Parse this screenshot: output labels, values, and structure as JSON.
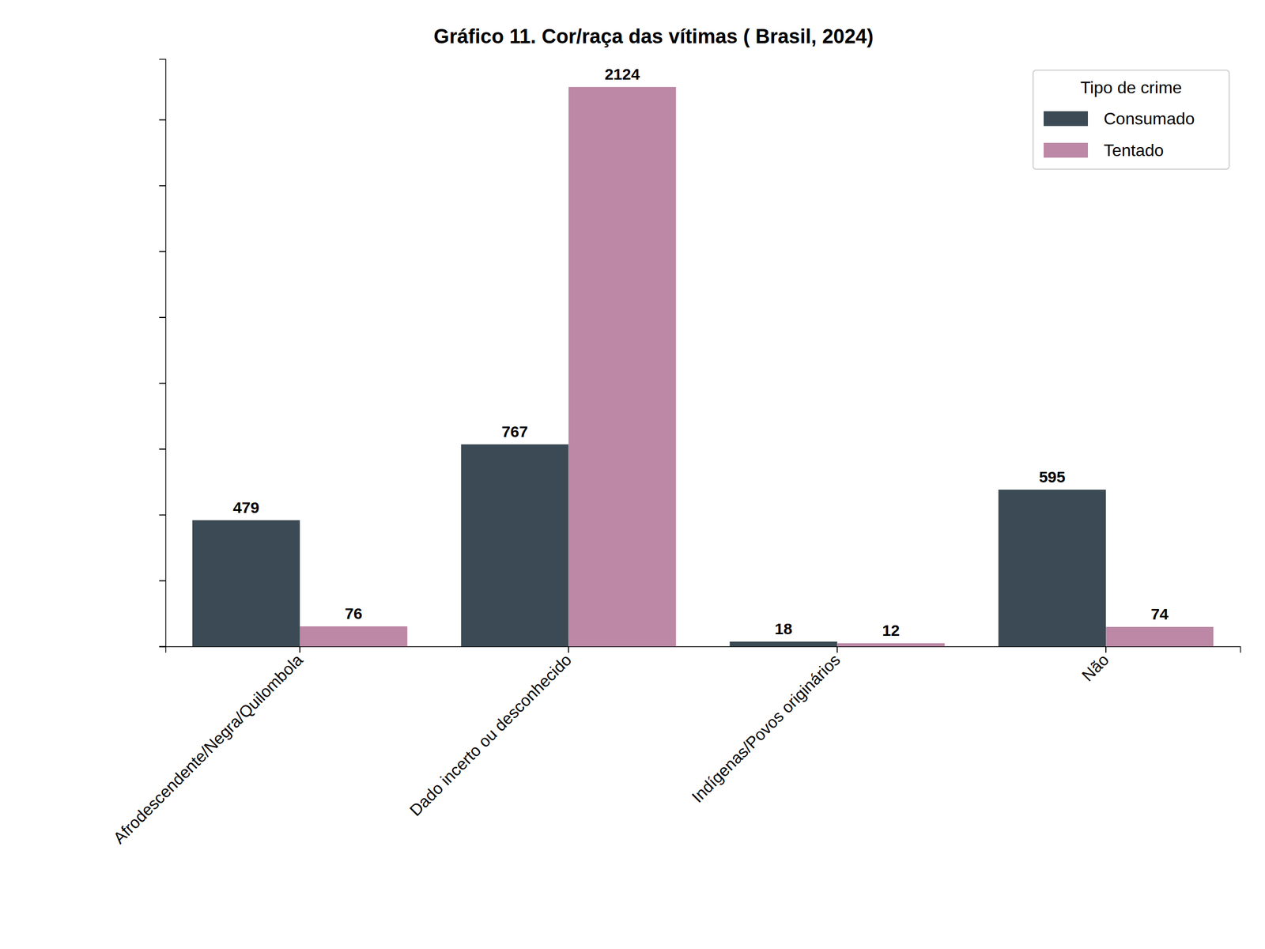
{
  "chart_data": {
    "type": "bar",
    "title": "Gráfico 11. Cor/raça das vítimas ( Brasil, 2024)",
    "categories": [
      "Afrodescendente/Negra/Quilombola",
      "Dado incerto ou desconhecido",
      "Indígenas/Povos originários",
      "Não"
    ],
    "series": [
      {
        "name": "Consumado",
        "color": "#3b4a54",
        "values": [
          479,
          767,
          18,
          595
        ]
      },
      {
        "name": "Tentado",
        "color": "#bc88a5",
        "values": [
          76,
          2124,
          12,
          74
        ]
      }
    ],
    "ylim": [
      0,
      2230
    ],
    "yticks": [
      0,
      250,
      500,
      750,
      1000,
      1250,
      1500,
      1750,
      2000
    ],
    "tick_labels": "x",
    "data_labels": true,
    "legend": "upper right",
    "legend_title": "Tipo de crime",
    "grid": false
  }
}
